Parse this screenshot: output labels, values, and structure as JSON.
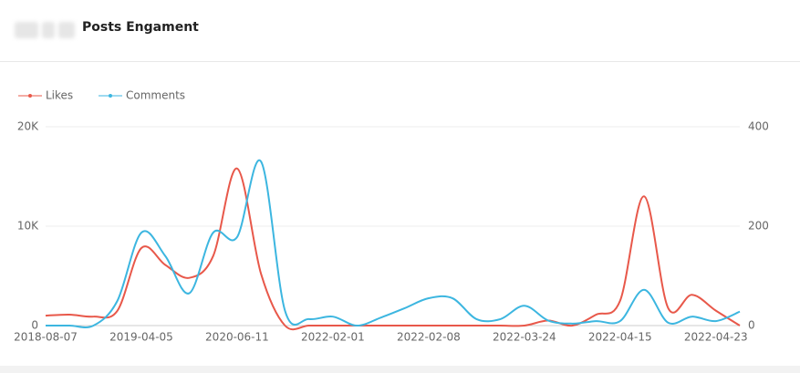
{
  "header": {
    "title": "Posts Engament"
  },
  "chart_data": {
    "type": "line",
    "categories": [
      "2018-08-07",
      null,
      null,
      null,
      "2019-04-05",
      null,
      null,
      null,
      "2020-06-11",
      null,
      null,
      null,
      "2022-02-01",
      null,
      null,
      null,
      "2022-02-08",
      null,
      null,
      null,
      "2022-03-24",
      null,
      null,
      null,
      "2022-04-15",
      null,
      null,
      null,
      "2022-04-23",
      null
    ],
    "series": [
      {
        "name": "Likes",
        "color": "#e8584a",
        "values": [
          1000,
          1100,
          900,
          1500,
          7800,
          6100,
          4800,
          7000,
          15800,
          5200,
          0,
          0,
          0,
          0,
          0,
          0,
          0,
          0,
          0,
          0,
          0,
          500,
          0,
          1100,
          2500,
          13000,
          1800,
          3100,
          1500,
          0
        ]
      },
      {
        "name": "Comments",
        "color": "#3cb6e0",
        "axis": "y2",
        "values": [
          0,
          0,
          0,
          50,
          187,
          140,
          65,
          187,
          178,
          330,
          30,
          13,
          18,
          0,
          16,
          35,
          55,
          55,
          13,
          13,
          40,
          10,
          4,
          9,
          9,
          72,
          6,
          18,
          9,
          28
        ]
      }
    ],
    "ylim": [
      0,
      20000
    ],
    "yticks": [
      0,
      {
        "value": 10000,
        "label": "10K"
      },
      {
        "value": 20000,
        "label": "20K"
      }
    ],
    "y2lim": [
      0,
      400
    ],
    "y2ticks": [
      0,
      200,
      400
    ],
    "grid": true,
    "legend": "top-left"
  }
}
